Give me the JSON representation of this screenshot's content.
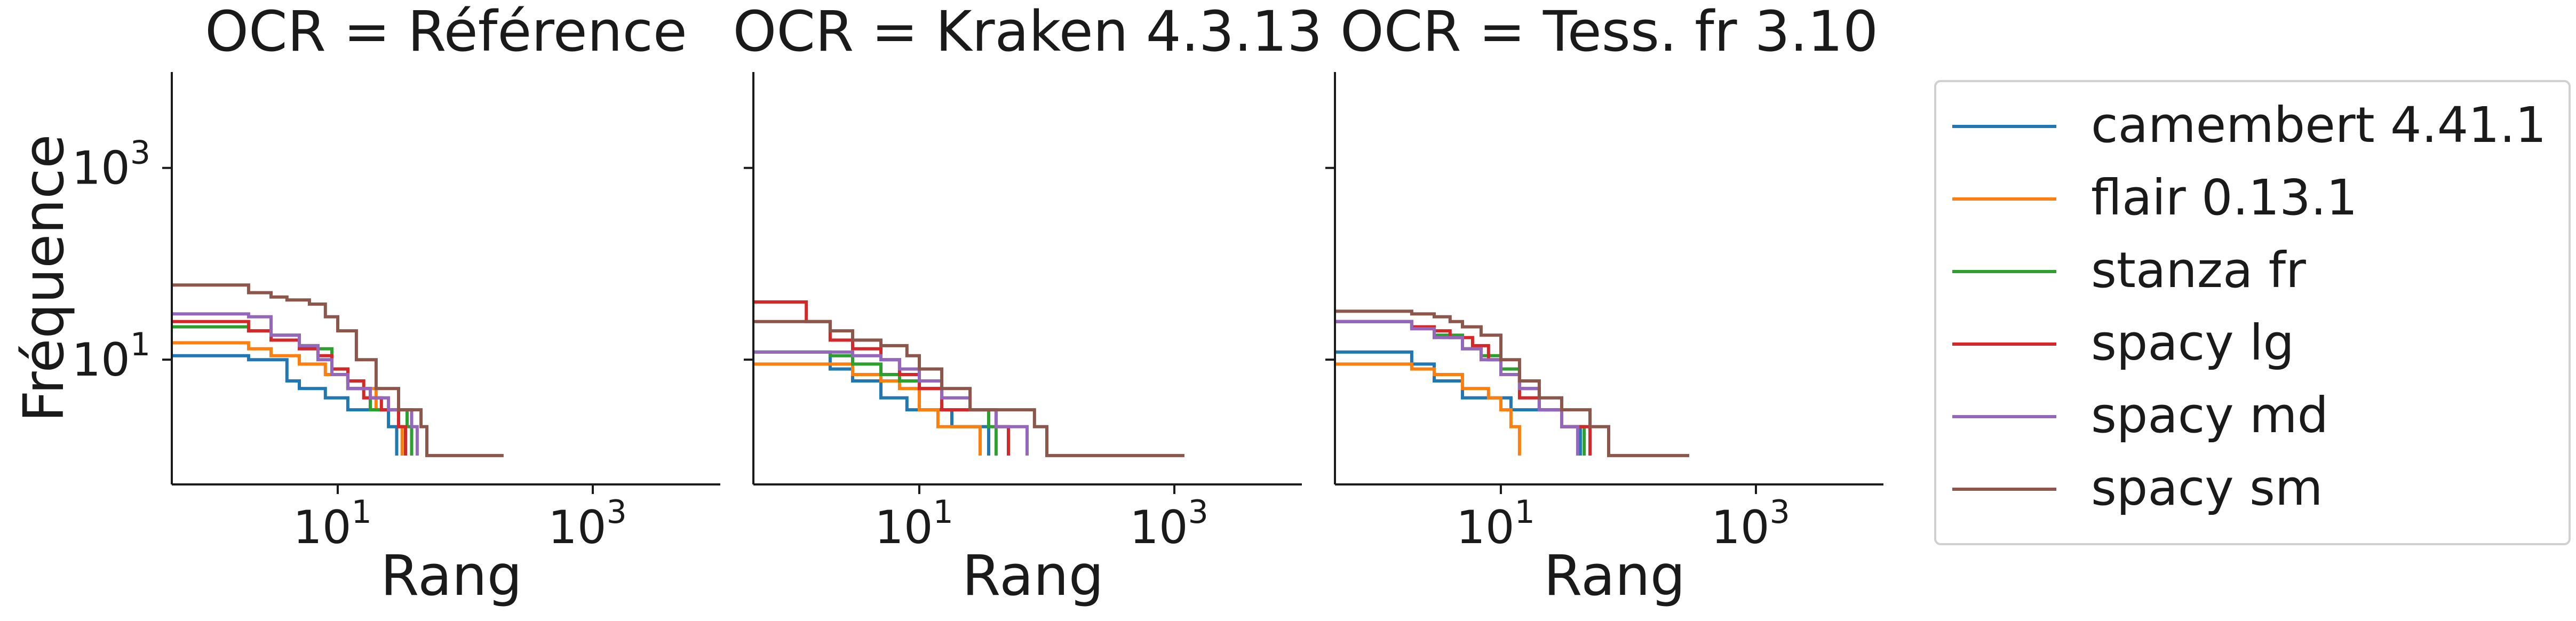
{
  "chart_data": {
    "type": "line",
    "ylabel": "Fréquence",
    "xscale": "log",
    "yscale": "log",
    "xlim": [
      0.5,
      10000
    ],
    "ylim": [
      0.5,
      10000
    ],
    "xticks": [
      {
        "v": 10,
        "base": "10",
        "exp": "1"
      },
      {
        "v": 1000,
        "base": "10",
        "exp": "3"
      }
    ],
    "yticks": [
      {
        "v": 10,
        "base": "10",
        "exp": "1"
      },
      {
        "v": 1000,
        "base": "10",
        "exp": "3"
      }
    ],
    "legend_position": "right",
    "colors": {
      "camembert 4.41.1": "#1f77b4",
      "flair 0.13.1": "#ff7f0e",
      "stanza fr": "#2ca02c",
      "spacy lg": "#d62728",
      "spacy md": "#9467bd",
      "spacy sm": "#8c564b"
    },
    "legend": [
      "camembert 4.41.1",
      "flair 0.13.1",
      "stanza fr",
      "spacy lg",
      "spacy md",
      "spacy sm"
    ],
    "panels": [
      {
        "title": "OCR = Référence",
        "xlabel": "Rang",
        "series": [
          {
            "name": "camembert 4.41.1",
            "x": [
              0.5,
              1,
              2,
              3,
              4,
              5,
              8,
              12,
              18,
              25,
              29
            ],
            "y": [
              11,
              11,
              10,
              10,
              6,
              5,
              4,
              3,
              3,
              2,
              1
            ]
          },
          {
            "name": "flair 0.13.1",
            "x": [
              0.5,
              1,
              2,
              3,
              5,
              8,
              12,
              20,
              30,
              32
            ],
            "y": [
              15,
              15,
              13,
              11,
              9,
              7,
              5,
              3,
              2,
              1
            ]
          },
          {
            "name": "stanza fr",
            "x": [
              0.5,
              1,
              2,
              3,
              5,
              7,
              9,
              12,
              18,
              25,
              35,
              38
            ],
            "y": [
              22,
              22,
              20,
              18,
              14,
              13,
              8,
              5,
              3,
              3,
              2,
              1
            ]
          },
          {
            "name": "spacy lg",
            "x": [
              0.5,
              1,
              2,
              3,
              5,
              7,
              9,
              12,
              16,
              22,
              30,
              34
            ],
            "y": [
              25,
              25,
              20,
              16,
              13,
              11,
              8,
              6,
              4,
              3,
              2,
              1
            ]
          },
          {
            "name": "spacy md",
            "x": [
              0.5,
              1,
              2,
              3,
              5,
              7,
              9,
              12,
              18,
              25,
              38,
              42
            ],
            "y": [
              30,
              30,
              28,
              18,
              14,
              10,
              7,
              5,
              4,
              3,
              2,
              1
            ]
          },
          {
            "name": "spacy sm",
            "x": [
              0.5,
              1,
              2,
              3,
              4,
              6,
              8,
              10,
              14,
              20,
              30,
              45,
              50,
              200
            ],
            "y": [
              60,
              60,
              50,
              45,
              42,
              38,
              28,
              20,
              10,
              5,
              3,
              2,
              1,
              1
            ]
          }
        ]
      },
      {
        "title": "OCR = Kraken 4.3.13",
        "xlabel": "Rang",
        "series": [
          {
            "name": "camembert 4.41.1",
            "x": [
              0.5,
              1,
              2,
              3,
              5,
              8,
              12,
              18,
              30,
              35
            ],
            "y": [
              12,
              12,
              8,
              6,
              4,
              3,
              3,
              2,
              2,
              1
            ]
          },
          {
            "name": "flair 0.13.1",
            "x": [
              0.5,
              1,
              2,
              3,
              5,
              7,
              10,
              14,
              20,
              30
            ],
            "y": [
              9,
              9,
              9,
              7,
              6,
              5,
              3,
              2,
              2,
              1
            ]
          },
          {
            "name": "stanza fr",
            "x": [
              0.5,
              1,
              2,
              3,
              5,
              7,
              10,
              15,
              25,
              35,
              40
            ],
            "y": [
              12,
              12,
              11,
              9,
              7,
              6,
              5,
              3,
              3,
              2,
              1
            ]
          },
          {
            "name": "spacy lg",
            "x": [
              0.5,
              1,
              1.3,
              2,
              3,
              5,
              7,
              10,
              15,
              25,
              40,
              50
            ],
            "y": [
              40,
              40,
              25,
              16,
              13,
              10,
              7,
              5,
              3,
              3,
              2,
              1
            ]
          },
          {
            "name": "spacy md",
            "x": [
              0.5,
              1,
              2,
              3,
              5,
              7,
              10,
              15,
              25,
              40,
              65,
              70
            ],
            "y": [
              12,
              12,
              12,
              11,
              10,
              8,
              6,
              4,
              3,
              2,
              2,
              1
            ]
          },
          {
            "name": "spacy sm",
            "x": [
              0.5,
              1,
              2,
              3,
              5,
              8,
              10,
              15,
              25,
              40,
              80,
              100,
              1200
            ],
            "y": [
              25,
              25,
              20,
              16,
              14,
              11,
              8,
              5,
              3,
              3,
              2,
              1,
              1
            ]
          }
        ]
      },
      {
        "title": "OCR = Tess. fr 3.10",
        "xlabel": "Rang",
        "series": [
          {
            "name": "camembert 4.41.1",
            "x": [
              0.5,
              1,
              2,
              3,
              5,
              8,
              12,
              18,
              30,
              40,
              42
            ],
            "y": [
              12,
              12,
              9,
              6,
              4,
              4,
              3,
              3,
              2,
              2,
              1
            ]
          },
          {
            "name": "flair 0.13.1",
            "x": [
              0.5,
              1,
              2,
              3,
              5,
              8,
              10,
              12,
              14
            ],
            "y": [
              9,
              9,
              8,
              7,
              5,
              4,
              3,
              2,
              1
            ]
          },
          {
            "name": "stanza fr",
            "x": [
              0.5,
              1,
              2,
              3,
              5,
              7,
              10,
              14,
              20,
              30,
              40,
              45
            ],
            "y": [
              25,
              25,
              22,
              18,
              13,
              11,
              8,
              5,
              3,
              2,
              2,
              1
            ]
          },
          {
            "name": "spacy lg",
            "x": [
              0.5,
              1,
              2,
              3,
              4,
              6,
              8,
              10,
              14,
              20,
              30,
              45,
              50
            ],
            "y": [
              25,
              25,
              22,
              20,
              17,
              14,
              10,
              7,
              4,
              3,
              2,
              2,
              1
            ]
          },
          {
            "name": "spacy md",
            "x": [
              0.5,
              1,
              2,
              3,
              5,
              7,
              10,
              14,
              20,
              30,
              38,
              40
            ],
            "y": [
              25,
              25,
              21,
              17,
              13,
              10,
              7,
              5,
              3,
              2,
              2,
              1
            ]
          },
          {
            "name": "spacy sm",
            "x": [
              0.5,
              1,
              2,
              3,
              4,
              5,
              7,
              10,
              14,
              20,
              30,
              50,
              70,
              300
            ],
            "y": [
              32,
              32,
              30,
              28,
              25,
              22,
              18,
              10,
              6,
              4,
              3,
              2,
              1,
              1
            ]
          }
        ]
      }
    ]
  }
}
